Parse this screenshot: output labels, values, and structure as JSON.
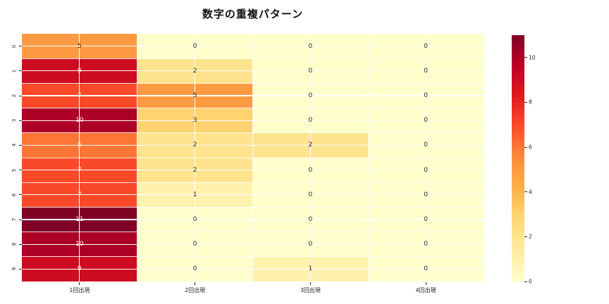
{
  "chart_data": {
    "type": "heatmap",
    "title": "数字の重複パターン",
    "rows": [
      "0",
      "1",
      "2",
      "3",
      "4",
      "5",
      "6",
      "7",
      "8",
      "9"
    ],
    "columns": [
      "1回出現",
      "2回出現",
      "3回出現",
      "4回出現"
    ],
    "values": [
      [
        5,
        0,
        0,
        0
      ],
      [
        9,
        2,
        0,
        0
      ],
      [
        7,
        5,
        0,
        0
      ],
      [
        10,
        3,
        0,
        0
      ],
      [
        6,
        2,
        2,
        0
      ],
      [
        7,
        2,
        0,
        0
      ],
      [
        7,
        1,
        0,
        0
      ],
      [
        11,
        0,
        0,
        0
      ],
      [
        10,
        0,
        0,
        0
      ],
      [
        9,
        0,
        1,
        0
      ]
    ],
    "vmin": 0,
    "vmax": 11,
    "colormap": "YlOrRd",
    "colormap_stops": [
      "#ffffcc",
      "#ffeda0",
      "#fed976",
      "#feb24c",
      "#fd8d3c",
      "#fc4e2a",
      "#e31a1c",
      "#bd0026",
      "#800026"
    ],
    "colorbar_ticks": [
      0,
      2,
      4,
      6,
      8,
      10
    ],
    "colorbar_position": "right",
    "annotation_dark_color": "#262626",
    "annotation_light_color": "#ffffff",
    "gridline_color": "#ffffff",
    "grid": true,
    "xlabel": "",
    "ylabel": ""
  }
}
